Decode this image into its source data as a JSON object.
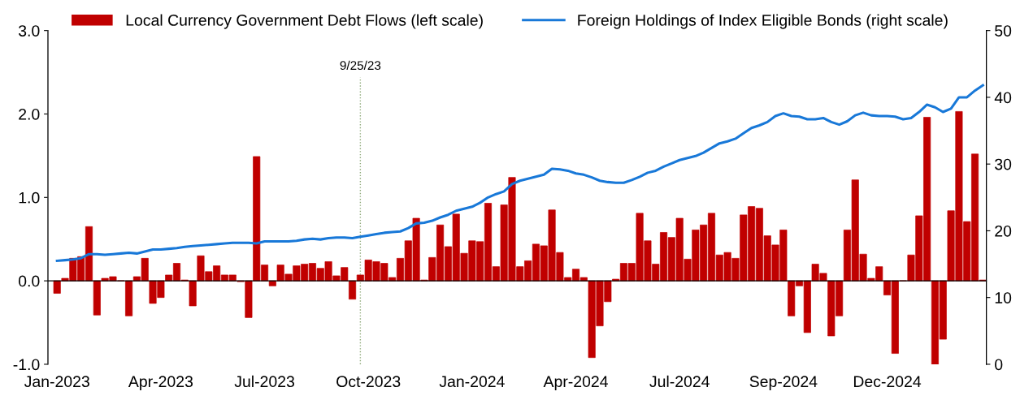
{
  "chart_data": {
    "type": "bar",
    "x": [
      "2023-01-02",
      "2023-01-09",
      "2023-01-16",
      "2023-01-23",
      "2023-01-30",
      "2023-02-06",
      "2023-02-13",
      "2023-02-20",
      "2023-02-27",
      "2023-03-06",
      "2023-03-13",
      "2023-03-20",
      "2023-03-27",
      "2023-04-03",
      "2023-04-10",
      "2023-04-17",
      "2023-04-24",
      "2023-05-01",
      "2023-05-08",
      "2023-05-15",
      "2023-05-22",
      "2023-05-29",
      "2023-06-05",
      "2023-06-12",
      "2023-06-19",
      "2023-06-26",
      "2023-07-03",
      "2023-07-10",
      "2023-07-17",
      "2023-07-24",
      "2023-07-31",
      "2023-08-07",
      "2023-08-14",
      "2023-08-21",
      "2023-08-28",
      "2023-09-04",
      "2023-09-11",
      "2023-09-18",
      "2023-09-25",
      "2023-10-02",
      "2023-10-09",
      "2023-10-16",
      "2023-10-23",
      "2023-10-30",
      "2023-11-06",
      "2023-11-13",
      "2023-11-20",
      "2023-11-27",
      "2023-12-04",
      "2023-12-11",
      "2023-12-18",
      "2023-12-25",
      "2024-01-01",
      "2024-01-08",
      "2024-01-15",
      "2024-01-22",
      "2024-01-29",
      "2024-02-05",
      "2024-02-12",
      "2024-02-19",
      "2024-02-26",
      "2024-03-04",
      "2024-03-11",
      "2024-03-18",
      "2024-03-25",
      "2024-04-01",
      "2024-04-08",
      "2024-04-15",
      "2024-04-22",
      "2024-04-29",
      "2024-05-06",
      "2024-05-13",
      "2024-05-20",
      "2024-05-27",
      "2024-06-03",
      "2024-06-10",
      "2024-06-17",
      "2024-06-24",
      "2024-07-01",
      "2024-07-08",
      "2024-07-15",
      "2024-07-22",
      "2024-07-29",
      "2024-08-05",
      "2024-08-12",
      "2024-08-19",
      "2024-08-26",
      "2024-09-02",
      "2024-09-09",
      "2024-09-16",
      "2024-09-23",
      "2024-09-30",
      "2024-10-07",
      "2024-10-14",
      "2024-10-21",
      "2024-10-28",
      "2024-11-04",
      "2024-11-11",
      "2024-11-18",
      "2024-11-25",
      "2024-12-02",
      "2024-12-09",
      "2024-12-16",
      "2024-12-23",
      "2024-12-30",
      "2025-01-06",
      "2025-01-13",
      "2025-01-20",
      "2025-01-27",
      "2025-02-03",
      "2025-02-10",
      "2025-02-17",
      "2025-02-24",
      "2025-03-03",
      "2025-03-10",
      "2025-03-17",
      "2025-03-24"
    ],
    "series": [
      {
        "name": "Local Currency Government Debt Flows (left scale)",
        "color": "#c00000",
        "values": [
          -0.15,
          0.03,
          0.27,
          0.29,
          0.65,
          -0.41,
          0.03,
          0.05,
          0,
          -0.42,
          0.05,
          0.27,
          -0.27,
          -0.2,
          0.07,
          0.21,
          0.01,
          -0.3,
          0.3,
          0.11,
          0.18,
          0.07,
          0.07,
          -0.01,
          -0.44,
          1.49,
          0.19,
          -0.06,
          0.19,
          0.08,
          0.18,
          0.2,
          0.21,
          0.15,
          0.23,
          0.06,
          0.16,
          -0.22,
          0.07,
          0.25,
          0.23,
          0.21,
          0.04,
          0.27,
          0.48,
          0.75,
          0.01,
          0.28,
          0.67,
          0.41,
          0.8,
          0.33,
          0.48,
          0.47,
          0.93,
          0.17,
          0.91,
          1.24,
          0.17,
          0.24,
          0.44,
          0.42,
          0.85,
          0.34,
          0.04,
          0.14,
          0.04,
          -0.92,
          -0.54,
          -0.25,
          0.02,
          0.21,
          0.21,
          0.81,
          0.48,
          0.2,
          0.58,
          0.52,
          0.75,
          0.26,
          0.61,
          0.67,
          0.81,
          0.31,
          0.34,
          0.27,
          0.79,
          0.89,
          0.87,
          0.54,
          0.43,
          0.61,
          -0.42,
          -0.06,
          -0.62,
          0.2,
          0.09,
          -0.66,
          -0.42,
          0.61,
          1.21,
          0.32,
          0.03,
          0.17,
          -0.17,
          -0.87,
          0,
          0.31,
          0.78,
          1.96,
          -1.0,
          -0.7,
          0.84,
          2.03,
          0.71,
          1.52,
          0.01
        ]
      },
      {
        "name": "Foreign Holdings of Index Eligible Bonds (right scale)",
        "type": "line",
        "axis": "y2",
        "color": "#1878d8",
        "values": [
          15.5,
          15.6,
          15.7,
          15.9,
          16.5,
          16.5,
          16.4,
          16.5,
          16.6,
          16.7,
          16.6,
          16.9,
          17.2,
          17.2,
          17.3,
          17.4,
          17.6,
          17.7,
          17.8,
          17.9,
          18.0,
          18.1,
          18.2,
          18.2,
          18.2,
          18.1,
          18.4,
          18.4,
          18.4,
          18.4,
          18.5,
          18.7,
          18.8,
          18.7,
          18.9,
          19.0,
          19.0,
          18.9,
          19.1,
          19.3,
          19.5,
          19.7,
          19.8,
          19.9,
          20.4,
          21.1,
          21.2,
          21.5,
          22.0,
          22.4,
          23.0,
          23.3,
          23.6,
          24.2,
          25.0,
          25.5,
          25.9,
          27.0,
          27.5,
          27.8,
          28.1,
          28.4,
          29.3,
          29.2,
          29.0,
          28.6,
          28.4,
          28.0,
          27.5,
          27.3,
          27.2,
          27.2,
          27.6,
          28.1,
          28.7,
          29.0,
          29.6,
          30.1,
          30.6,
          30.9,
          31.2,
          31.7,
          32.4,
          33.1,
          33.4,
          33.8,
          34.6,
          35.4,
          35.8,
          36.3,
          37.2,
          37.6,
          37.2,
          37.1,
          36.7,
          36.7,
          36.9,
          36.3,
          35.9,
          36.4,
          37.3,
          37.7,
          37.3,
          37.2,
          37.2,
          37.1,
          36.7,
          36.9,
          37.8,
          38.9,
          38.5,
          37.8,
          38.3,
          40.0,
          40.0,
          41.0,
          41.8
        ]
      }
    ],
    "xlim": [
      "2022-12-25",
      "2025-03-27"
    ],
    "xticks": [
      {
        "value": "2023-01-02",
        "label": "Jan-2023"
      },
      {
        "value": "2023-04-03",
        "label": "Apr-2023"
      },
      {
        "value": "2023-07-03",
        "label": "Jul-2023"
      },
      {
        "value": "2023-10-02",
        "label": "Oct-2023"
      },
      {
        "value": "2024-01-01",
        "label": "Jan-2024"
      },
      {
        "value": "2024-04-01",
        "label": "Apr-2024"
      },
      {
        "value": "2024-07-01",
        "label": "Jul-2024"
      },
      {
        "value": "2024-09-30",
        "label": "Sep-2024"
      },
      {
        "value": "2024-12-30",
        "label": "Dec-2024"
      }
    ],
    "ylim": [
      -1,
      3
    ],
    "yticks": [
      {
        "value": -1,
        "label": "-1.0"
      },
      {
        "value": 0,
        "label": "0.0"
      },
      {
        "value": 1,
        "label": "1.0"
      },
      {
        "value": 2,
        "label": "2.0"
      },
      {
        "value": 3,
        "label": "3.0"
      }
    ],
    "y2lim": [
      0,
      50
    ],
    "y2ticks": [
      0,
      10,
      20,
      30,
      40,
      50
    ],
    "ref_lines": [
      {
        "axis": "x",
        "value": "2023-09-25",
        "label": "9/25/23",
        "color": "#8faa7a",
        "line_style": "dotted"
      }
    ],
    "legend": "top"
  }
}
